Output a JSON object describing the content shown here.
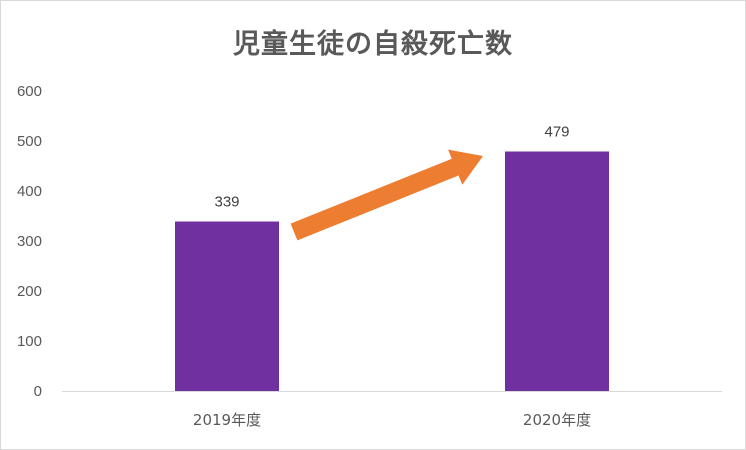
{
  "chart_data": {
    "type": "bar",
    "title": "児童生徒の自殺死亡数",
    "categories": [
      "2019年度",
      "2020年度"
    ],
    "values": [
      339,
      479
    ],
    "data_labels": [
      "339",
      "479"
    ],
    "ylim": [
      0,
      600
    ],
    "yticks": [
      0,
      100,
      200,
      300,
      400,
      500,
      600
    ],
    "ytick_labels": [
      "0",
      "100",
      "200",
      "300",
      "400",
      "500",
      "600"
    ],
    "xlabel": "",
    "ylabel": "",
    "grid": false,
    "legend": "none",
    "annotation": "orange arrow pointing up-right from 2019年度 bar to 2020年度 bar",
    "colors": {
      "bar": "#7030a0",
      "arrow": "#ed7d31",
      "axis": "#d9d9d9",
      "text": "#595959"
    }
  }
}
